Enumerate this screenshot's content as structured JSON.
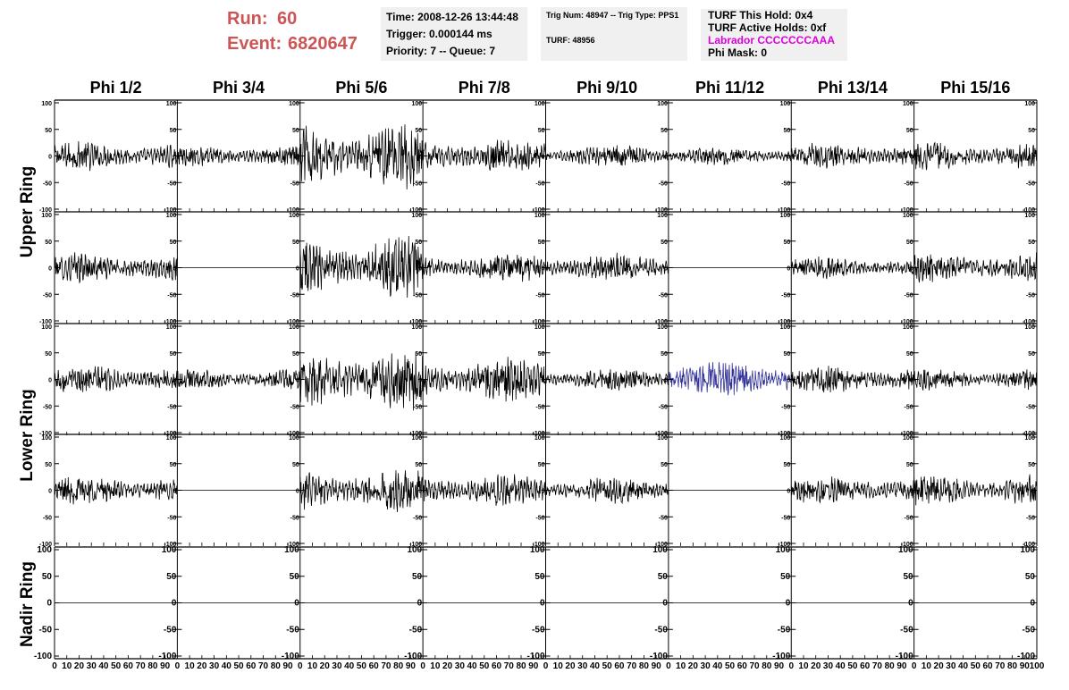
{
  "header": {
    "run_label": "Run:",
    "run_value": "60",
    "event_label": "Event:",
    "event_value": "6820647",
    "time": "Time: 2008-12-26 13:44:48",
    "trigger": "Trigger: 0.000144 ms",
    "priority": "Priority: 7 -- Queue: 7",
    "trig_num": "Trig Num: 48947 -- Trig Type: PPS1",
    "turf": "TURF: 48956",
    "turf_this_hold": "TURF This Hold: 0x4",
    "turf_active_holds": "TURF Active Holds: 0xf",
    "labrador": "Labrador CCCCCCCAAA",
    "phi_mask": "Phi Mask: 0"
  },
  "colors": {
    "run_event": "#cc5555",
    "labrador": "#dd00dd",
    "info_background": "#f0f0f0",
    "trace_default": "#000000",
    "trace_highlight": "#333399"
  },
  "chart_data": {
    "type": "line",
    "columns": [
      "Phi 1/2",
      "Phi 3/4",
      "Phi 5/6",
      "Phi 7/8",
      "Phi 9/10",
      "Phi 11/12",
      "Phi 13/14",
      "Phi 15/16"
    ],
    "ring_labels": [
      "Upper Ring",
      "Lower Ring",
      "Nadir Ring"
    ],
    "xlim": [
      0,
      100
    ],
    "ylim": [
      -100,
      100
    ],
    "x_tick_labels": [
      "0",
      "10",
      "20",
      "30",
      "40",
      "50",
      "60",
      "70",
      "80",
      "90",
      "100"
    ],
    "y_tick_labels": [
      "100",
      "50",
      "0",
      "-50",
      "-100"
    ],
    "rows": [
      {
        "ring": "Upper Ring",
        "amplitude": [
          20,
          15,
          45,
          25,
          15,
          12,
          18,
          20
        ],
        "highlight": null
      },
      {
        "ring": "Upper Ring",
        "amplitude": [
          22,
          0,
          42,
          20,
          20,
          0,
          15,
          22
        ],
        "highlight": null
      },
      {
        "ring": "Lower Ring",
        "amplitude": [
          20,
          15,
          45,
          30,
          15,
          25,
          20,
          15
        ],
        "highlight": 5
      },
      {
        "ring": "Lower Ring",
        "amplitude": [
          20,
          0,
          30,
          22,
          18,
          0,
          20,
          22
        ],
        "highlight": null
      },
      {
        "ring": "Nadir Ring",
        "amplitude": [
          0,
          0,
          0,
          0,
          0,
          0,
          0,
          0
        ],
        "highlight": null
      }
    ]
  }
}
